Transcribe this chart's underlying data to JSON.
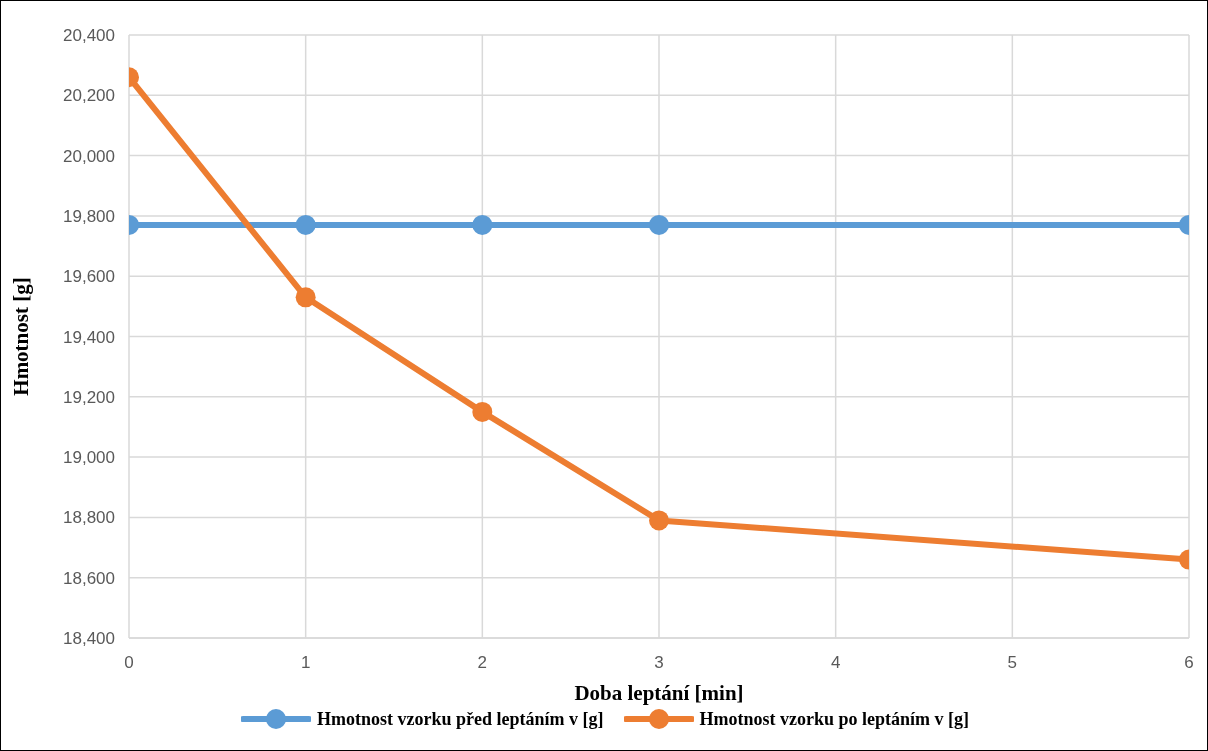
{
  "chart_data": {
    "type": "line",
    "xlabel": "Doba leptání [min]",
    "ylabel": "Hmotnost [g]",
    "x": [
      0,
      1,
      2,
      3,
      6
    ],
    "series": [
      {
        "name": "Hmotnost vzorku před leptáním v [g]",
        "color": "#5b9bd5",
        "values": [
          19770,
          19770,
          19770,
          19770,
          19770
        ]
      },
      {
        "name": "Hmotnost vzorku po leptáním v [g]",
        "color": "#ed7d31",
        "values": [
          20260,
          19530,
          19150,
          18790,
          18660
        ]
      }
    ],
    "xlim": [
      0,
      6
    ],
    "xticks": [
      0,
      1,
      2,
      3,
      4,
      5,
      6
    ],
    "ylim": [
      18400,
      20400
    ],
    "yticks": [
      {
        "value": 18400,
        "label": "18,400"
      },
      {
        "value": 18600,
        "label": "18,600"
      },
      {
        "value": 18800,
        "label": "18,800"
      },
      {
        "value": 19000,
        "label": "19,000"
      },
      {
        "value": 19200,
        "label": "19,200"
      },
      {
        "value": 19400,
        "label": "19,400"
      },
      {
        "value": 19600,
        "label": "19,600"
      },
      {
        "value": 19800,
        "label": "19,800"
      },
      {
        "value": 20000,
        "label": "20,000"
      },
      {
        "value": 20200,
        "label": "20,200"
      },
      {
        "value": 20400,
        "label": "20,400"
      }
    ],
    "grid": true,
    "legend": "bottom",
    "marker": "circle",
    "line_style": "solid"
  }
}
